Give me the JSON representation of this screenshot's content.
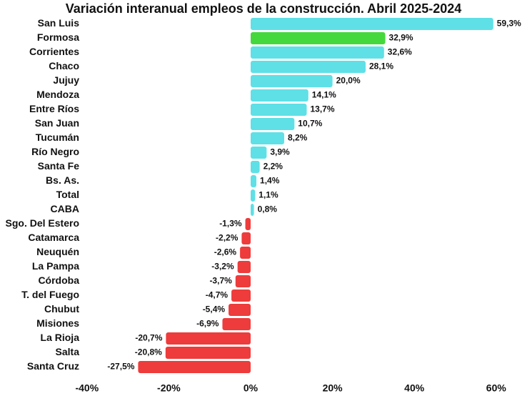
{
  "chart_data": {
    "type": "bar",
    "orientation": "horizontal",
    "title": "Variación interanual empleos de la construcción. Abril 2025-2024",
    "xlabel": "",
    "ylabel": "",
    "xlim": [
      -40,
      60
    ],
    "x_ticks": [
      -40,
      -20,
      0,
      20,
      40,
      60
    ],
    "x_tick_labels": [
      "-40%",
      "-20%",
      "0%",
      "20%",
      "40%",
      "60%"
    ],
    "grid": false,
    "colors": {
      "positive": "#5ee0e6",
      "highlight": "#44d83d",
      "negative": "#ee3b3b"
    },
    "categories": [
      "San Luis",
      "Formosa",
      "Corrientes",
      "Chaco",
      "Jujuy",
      "Mendoza",
      "Entre Ríos",
      "San Juan",
      "Tucumán",
      "Río Negro",
      "Santa Fe",
      "Bs. As.",
      "Total",
      "CABA",
      "Sgo. Del Estero",
      "Catamarca",
      "Neuquén",
      "La Pampa",
      "Córdoba",
      "T. del Fuego",
      "Chubut",
      "Misiones",
      "La Rioja",
      "Salta",
      "Santa Cruz"
    ],
    "values": [
      59.3,
      32.9,
      32.6,
      28.1,
      20.0,
      14.1,
      13.7,
      10.7,
      8.2,
      3.9,
      2.2,
      1.4,
      1.1,
      0.8,
      -1.3,
      -2.2,
      -2.6,
      -3.2,
      -3.7,
      -4.7,
      -5.4,
      -6.9,
      -20.7,
      -20.8,
      -27.5
    ],
    "value_labels": [
      "59,3%",
      "32,9%",
      "32,6%",
      "28,1%",
      "20,0%",
      "14,1%",
      "13,7%",
      "10,7%",
      "8,2%",
      "3,9%",
      "2,2%",
      "1,4%",
      "1,1%",
      "0,8%",
      "-1,3%",
      "-2,2%",
      "-2,6%",
      "-3,2%",
      "-3,7%",
      "-4,7%",
      "-5,4%",
      "-6,9%",
      "-20,7%",
      "-20,8%",
      "-27,5%"
    ],
    "highlight_category": "Formosa"
  }
}
